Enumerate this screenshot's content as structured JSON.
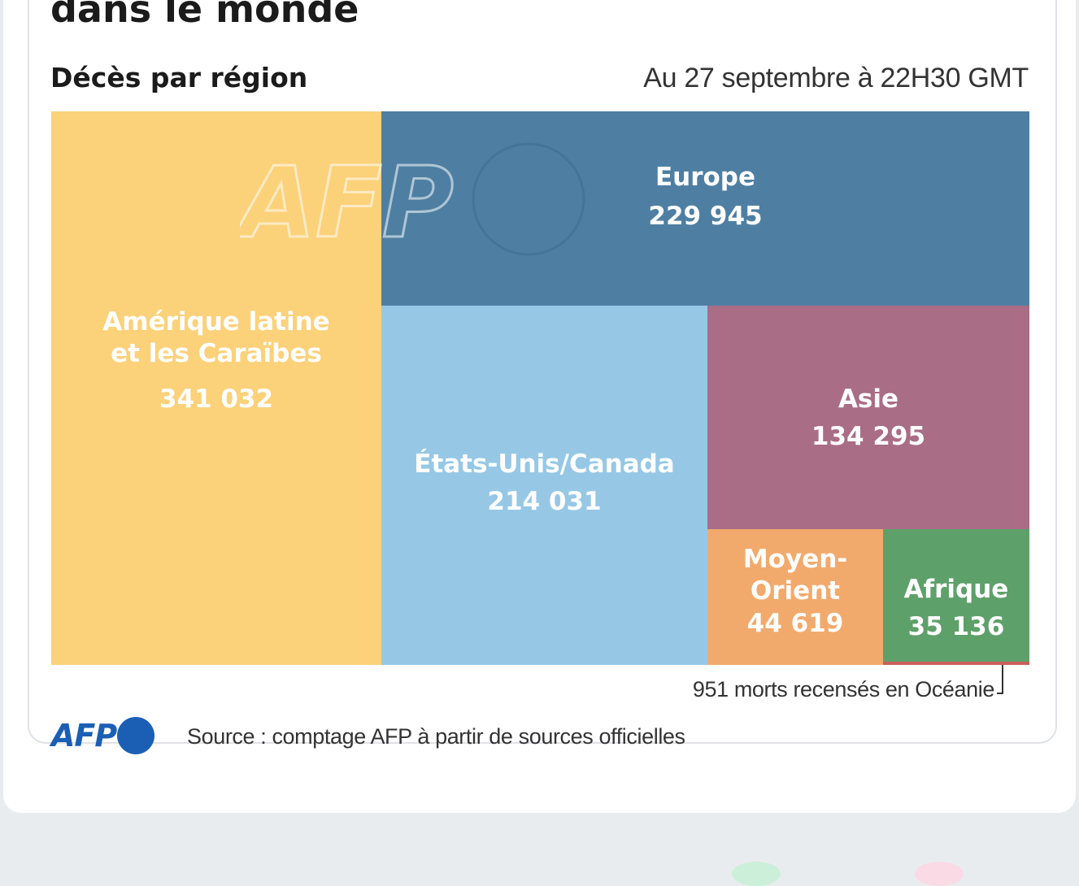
{
  "headline": "dans le monde",
  "subtitle": "Décès par région",
  "date_label": "Au 27 septembre à 22H30 GMT",
  "watermark": "AFP",
  "regions": {
    "latam": {
      "name_line1": "Amérique latine",
      "name_line2": "et les Caraïbes",
      "value": "341 032",
      "color": "#fbd17a"
    },
    "europe": {
      "name": "Europe",
      "value": "229 945",
      "color": "#4e7fa2"
    },
    "usca": {
      "name": "États-Unis/Canada",
      "value": "214 031",
      "color": "#96c8e6"
    },
    "asia": {
      "name": "Asie",
      "value": "134 295",
      "color": "#a96d86"
    },
    "middle_east": {
      "name_line1": "Moyen-",
      "name_line2": "Orient",
      "value": "44 619",
      "color": "#f2aa6c"
    },
    "africa": {
      "name": "Afrique",
      "value": "35 136",
      "color": "#5ea06a"
    },
    "oceania": {
      "color": "#c9605b"
    }
  },
  "oceania_note": "951 morts recensés en Océanie",
  "footer": {
    "logo_text": "AFP",
    "source": "Source : comptage AFP à partir de sources officielles",
    "logo_color": "#1a5fb4"
  }
}
